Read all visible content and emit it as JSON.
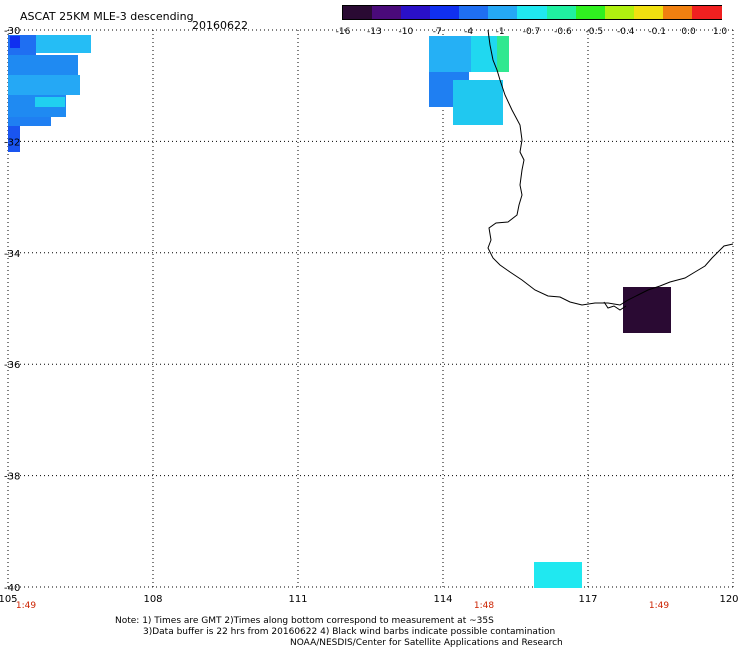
{
  "header": {
    "title": "ASCAT 25KM MLE-3 descending",
    "date": "20160622"
  },
  "colorbar": {
    "labels": [
      "-16",
      "-13",
      "-10",
      "-7",
      "-4",
      "-1",
      "-0.7",
      "-0.6",
      "-0.5",
      "-0.4",
      "-0.1",
      "0.0",
      "1.0"
    ],
    "colors": [
      "#2a0a33",
      "#4a0a7a",
      "#2a10c8",
      "#1030f0",
      "#1f6ff2",
      "#25a8f5",
      "#20e8f0",
      "#20f0a0",
      "#30f020",
      "#b0f010",
      "#f0e010",
      "#f08010",
      "#f02020"
    ]
  },
  "map": {
    "lon_ticks": [
      "105",
      "108",
      "111",
      "114",
      "117",
      "120"
    ],
    "lat_ticks": [
      "-30",
      "-32",
      "-34",
      "-36",
      "-38",
      "-40"
    ],
    "time_labels": [
      "1:49",
      "1:48",
      "1:49"
    ]
  },
  "footer": {
    "note1": "Note: 1) Times are GMT 2)Times along bottom correspond to measurement at ~35S",
    "note2": "3)Data buffer is 22 hrs from 20160622 4) Black wind barbs indicate possible contamination",
    "credit": "NOAA/NESDIS/Center for Satellite Applications and Research"
  }
}
